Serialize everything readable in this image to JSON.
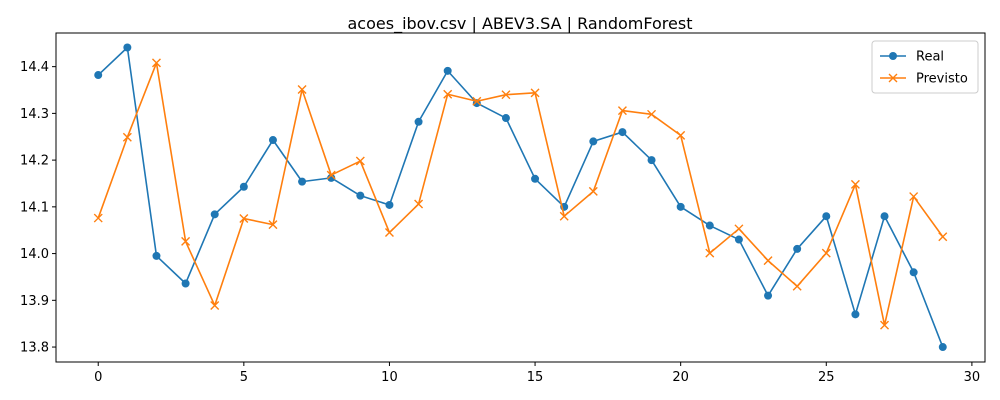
{
  "chart_data": {
    "type": "line",
    "title": "acoes_ibov.csv | ABEV3.SA | RandomForest",
    "xlabel": "",
    "ylabel": "",
    "xlim": [
      -1.45,
      30.45
    ],
    "ylim": [
      13.768,
      14.472
    ],
    "x_ticks": [
      0,
      5,
      10,
      15,
      20,
      25,
      30
    ],
    "y_ticks": [
      13.8,
      13.9,
      14.0,
      14.1,
      14.2,
      14.3,
      14.4
    ],
    "grid": false,
    "legend_position": "top-right",
    "x": [
      0,
      1,
      2,
      3,
      4,
      5,
      6,
      7,
      8,
      9,
      10,
      11,
      12,
      13,
      14,
      15,
      16,
      17,
      18,
      19,
      20,
      21,
      22,
      23,
      24,
      25,
      26,
      27,
      28,
      29
    ],
    "series": [
      {
        "name": "Real",
        "color": "#1f77b4",
        "marker": "circle",
        "values": [
          14.382,
          14.441,
          13.995,
          13.936,
          14.084,
          14.143,
          14.243,
          14.154,
          14.162,
          14.124,
          14.104,
          14.282,
          14.391,
          14.322,
          14.29,
          14.16,
          14.1,
          14.24,
          14.26,
          14.2,
          14.1,
          14.06,
          14.03,
          13.91,
          14.01,
          14.08,
          13.87,
          14.08,
          13.96,
          13.8
        ]
      },
      {
        "name": "Previsto",
        "color": "#ff7f0e",
        "marker": "x",
        "values": [
          14.076,
          14.249,
          14.408,
          14.026,
          13.889,
          14.075,
          14.062,
          14.351,
          14.168,
          14.198,
          14.045,
          14.106,
          14.341,
          14.326,
          14.34,
          14.344,
          14.08,
          14.133,
          14.306,
          14.298,
          14.253,
          14.001,
          14.053,
          13.985,
          13.93,
          14.001,
          14.148,
          13.847,
          14.122,
          14.036
        ]
      }
    ]
  }
}
